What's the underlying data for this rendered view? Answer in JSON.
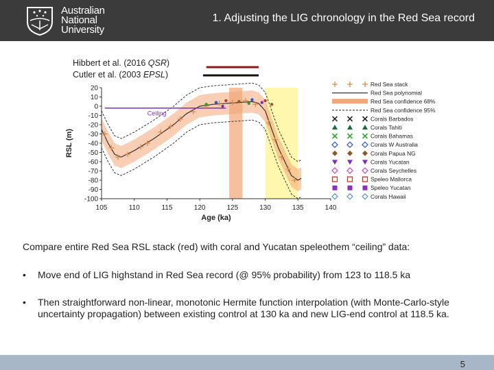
{
  "header": {
    "university_lines": [
      "Australian",
      "National",
      "University"
    ],
    "title": "1. Adjusting the LIG chronology in the Red Sea record"
  },
  "citations": {
    "line1_prefix": "Hibbert et al. (2016 ",
    "line1_journal": "QSR",
    "line1_suffix": ")",
    "line2_prefix": "Cutler et al. (2003 ",
    "line2_journal": "EPSL",
    "line2_suffix": ")",
    "line1_color": "#8b1a1a",
    "line2_color": "#111111"
  },
  "chart_data": {
    "type": "scatter",
    "xlabel": "Age (ka)",
    "ylabel": "RSL (m)",
    "xlim": [
      105,
      140
    ],
    "ylim": [
      -100,
      20
    ],
    "x_ticks": [
      105,
      110,
      115,
      120,
      125,
      130,
      135,
      140
    ],
    "y_ticks": [
      20,
      10,
      0,
      -10,
      -20,
      -30,
      -40,
      -50,
      -60,
      -70,
      -80,
      -90,
      -100
    ],
    "ceiling_label": "Ceiling",
    "ceiling_rsl": -2,
    "highlight_bands": [
      {
        "name": "peach",
        "range": [
          124.5,
          126.5
        ],
        "color": "#f5b48c"
      },
      {
        "name": "yellow",
        "range": [
          130,
          135
        ],
        "color": "#fff6a0"
      }
    ],
    "citation_bars": [
      {
        "name": "Hibbert",
        "range": [
          121,
          129
        ],
        "color": "#8b1a1a"
      },
      {
        "name": "Cutler",
        "range": [
          120.5,
          129
        ],
        "color": "#111111"
      }
    ],
    "series": [
      {
        "name": "Red Sea polynomial",
        "x": [
          105,
          106,
          107,
          108,
          110,
          113,
          116,
          118,
          120,
          122,
          124,
          126,
          128,
          129,
          130,
          131,
          132,
          133,
          134,
          135,
          135.5
        ],
        "values": [
          -25,
          -40,
          -52,
          -55,
          -48,
          -35,
          -20,
          -8,
          0,
          2,
          3,
          4,
          5,
          3,
          -5,
          -25,
          -45,
          -60,
          -75,
          -80,
          -78
        ]
      },
      {
        "name": "Red Sea stack",
        "x": [
          105.5,
          106.5,
          107.5,
          109,
          111,
          112,
          114,
          115.5,
          117,
          119,
          121,
          123,
          125,
          127,
          128.5,
          130.5,
          131.5,
          132.5,
          133.5,
          134.5
        ],
        "values": [
          -30,
          -45,
          -55,
          -52,
          -44,
          -40,
          -28,
          -22,
          -14,
          -6,
          0,
          3,
          4,
          6,
          2,
          -18,
          -36,
          -55,
          -68,
          -80
        ]
      },
      {
        "name": "Corals",
        "x": [
          121,
          122.5,
          123.5,
          124,
          126,
          127.5,
          128,
          129.5,
          130,
          131
        ],
        "values": [
          2,
          4,
          0,
          6,
          5,
          3,
          7,
          4,
          6,
          2
        ]
      }
    ],
    "legend": [
      {
        "label": "Red Sea stack",
        "marker": "plus",
        "color": "#d98a4c"
      },
      {
        "label": "Red Sea polynomial",
        "marker": "line",
        "color": "#333333"
      },
      {
        "label": "Red Sea confidence 68%",
        "marker": "band",
        "color": "#f3a677"
      },
      {
        "label": "Red Sea confidence 95%",
        "marker": "dash",
        "color": "#333333"
      },
      {
        "label": "Corals Barbados",
        "marker": "x",
        "color": "#222222"
      },
      {
        "label": "Corals Tahiti",
        "marker": "triangle",
        "color": "#1b6b3a"
      },
      {
        "label": "Corals Bahamas",
        "marker": "x",
        "color": "#2aa02a"
      },
      {
        "label": "Corals W Australia",
        "marker": "diamond-open",
        "color": "#3355bb"
      },
      {
        "label": "Corals Papua NG",
        "marker": "diamond",
        "color": "#8b5a2b"
      },
      {
        "label": "Corals Yucatan",
        "marker": "triangle-down",
        "color": "#7b2fbf"
      },
      {
        "label": "Corals Seychelles",
        "marker": "diamond-open",
        "color": "#c040c0"
      },
      {
        "label": "Speleo Mallorca",
        "marker": "square-open",
        "color": "#c0392b"
      },
      {
        "label": "Speleo Yucatan",
        "marker": "square",
        "color": "#8e2fbf"
      },
      {
        "label": "Corals Hawaii",
        "marker": "diamond-open",
        "color": "#5b8fd0"
      }
    ]
  },
  "body": {
    "intro": "Compare entire Red Sea RSL stack (red) with coral and Yucatan speleothem “ceiling” data:",
    "bullets": [
      "Move end of LIG highstand in Red Sea record (@ 95% probability) from 123 to 118.5 ka",
      "Then straightforward non-linear, monotonic Hermite function interpolation (with Monte-Carlo-style uncertainty propagation) between existing control at 130 ka and new LIG-end control at 118.5 ka."
    ],
    "bullet_symbol": "•"
  },
  "footer": {
    "page_number": "5"
  }
}
